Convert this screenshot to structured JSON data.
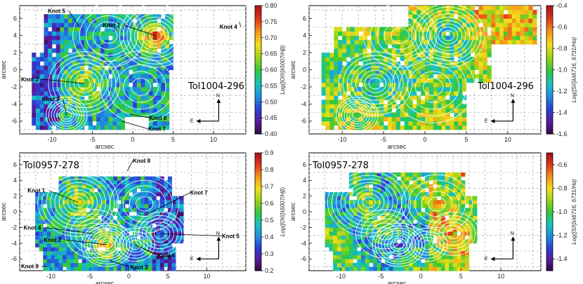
{
  "colormap": [
    "#2b0a3d",
    "#5b1a9a",
    "#2a3fd6",
    "#1e8fe0",
    "#18c4c0",
    "#2fc83a",
    "#9ad21a",
    "#f2e01a",
    "#f59a18",
    "#e23a1a",
    "#b0121a"
  ],
  "chart_data": [
    {
      "type": "heatmap",
      "id": "p1",
      "galaxy": "Tol1004-296",
      "xlabel": "arcsec",
      "ylabel": "arcsec",
      "xticks": [
        -10,
        -5,
        0,
        5,
        10
      ],
      "yticks": [
        6,
        4,
        2,
        0,
        -2,
        -4,
        -6
      ],
      "xlim": [
        -14,
        14
      ],
      "ylim": [
        -7.5,
        7.5
      ],
      "cbar_label": "Log([OIII]λ5007/Hβ)",
      "cbar_range": [
        0.4,
        0.8
      ],
      "cbar_ticks": [
        "0.80",
        "0.75",
        "0.70",
        "0.65",
        "0.60",
        "0.55",
        "0.50",
        "0.45",
        "0.40"
      ],
      "compass": {
        "north": "N",
        "east": "E"
      },
      "knots": [
        {
          "label": "Knot 1",
          "x": 2.8,
          "y": 4.0
        },
        {
          "label": "Knot 2",
          "x": -6.0,
          "y": -1.6
        },
        {
          "label": "Knot 3",
          "x": -8.2,
          "y": -5.3
        },
        {
          "label": "Knot 4",
          "x": 13.2,
          "y": 5.6
        },
        {
          "label": "Knot 5",
          "x": -6.6,
          "y": 5.0
        },
        {
          "label": "Knot 6",
          "x": -0.4,
          "y": -5.2
        },
        {
          "label": "Knot 7",
          "x": -1.4,
          "y": -6.0
        }
      ]
    },
    {
      "type": "heatmap",
      "id": "p2",
      "galaxy": "Tol1004-296",
      "xlabel": "arcsec",
      "ylabel": "arcsec",
      "xticks": [
        -10,
        -5,
        0,
        5,
        10
      ],
      "yticks": [
        6,
        4,
        2,
        0,
        -2,
        -4,
        -6
      ],
      "xlim": [
        -14,
        14
      ],
      "ylim": [
        -7.5,
        7.5
      ],
      "cbar_label": "Log([SII]λλ6716, 6731/Hα)",
      "cbar_range": [
        -1.6,
        -0.4
      ],
      "cbar_ticks": [
        "-0.4",
        "-0.6",
        "-0.8",
        "-1.0",
        "-1.2",
        "-1.4",
        "-1.6"
      ],
      "compass": {
        "north": "N",
        "east": "E"
      },
      "knots": []
    },
    {
      "type": "heatmap",
      "id": "p3",
      "galaxy": "Tol0957-278",
      "xlabel": "arcsec",
      "ylabel": "arcsec",
      "xticks": [
        -10,
        -5,
        0,
        5,
        10
      ],
      "yticks": [
        6,
        4,
        2,
        0,
        -2,
        -4,
        -6
      ],
      "xlim": [
        -14,
        15
      ],
      "ylim": [
        -7.5,
        7.5
      ],
      "cbar_label": "Log([OIII]λ5007/Hβ)",
      "cbar_range": [
        0.2,
        0.9
      ],
      "cbar_ticks": [
        "0.9",
        "0.8",
        "0.7",
        "0.6",
        "0.5",
        "0.4",
        "0.3",
        "0.2"
      ],
      "compass": {
        "north": "N",
        "east": "E"
      },
      "knots": [
        {
          "label": "Knot 1",
          "x": -6.5,
          "y": 1.2
        },
        {
          "label": "Knot 2",
          "x": -2.8,
          "y": -4.2
        },
        {
          "label": "Knot 3",
          "x": -2.5,
          "y": -6.2
        },
        {
          "label": "Knot 4",
          "x": -4.5,
          "y": -2.8
        },
        {
          "label": "Knot 5",
          "x": 4.0,
          "y": -2.8
        },
        {
          "label": "Knot 6",
          "x": 0.8,
          "y": -4.2
        },
        {
          "label": "Knot 7",
          "x": 2.0,
          "y": -0.5
        },
        {
          "label": "Knot 8",
          "x": -0.2,
          "y": 5.2
        },
        {
          "label": "Knot 9",
          "x": -10.5,
          "y": -7.0
        }
      ]
    },
    {
      "type": "heatmap",
      "id": "p4",
      "galaxy": "Tol0957-278",
      "xlabel": "arcsec",
      "ylabel": "arcsec",
      "xticks": [
        -10,
        -5,
        0,
        5,
        10
      ],
      "yticks": [
        6,
        4,
        2,
        0,
        -2,
        -4,
        -6
      ],
      "xlim": [
        -14,
        15
      ],
      "ylim": [
        -7.5,
        7.5
      ],
      "cbar_label": "Log([SII]λλ6716, 6731/Hα)",
      "cbar_range": [
        -1.5,
        -0.5
      ],
      "cbar_ticks": [
        "-0.6",
        "-0.8",
        "-1.0",
        "-1.2",
        "-1.4"
      ],
      "compass": {
        "north": "N",
        "east": "E"
      },
      "knots": []
    }
  ]
}
